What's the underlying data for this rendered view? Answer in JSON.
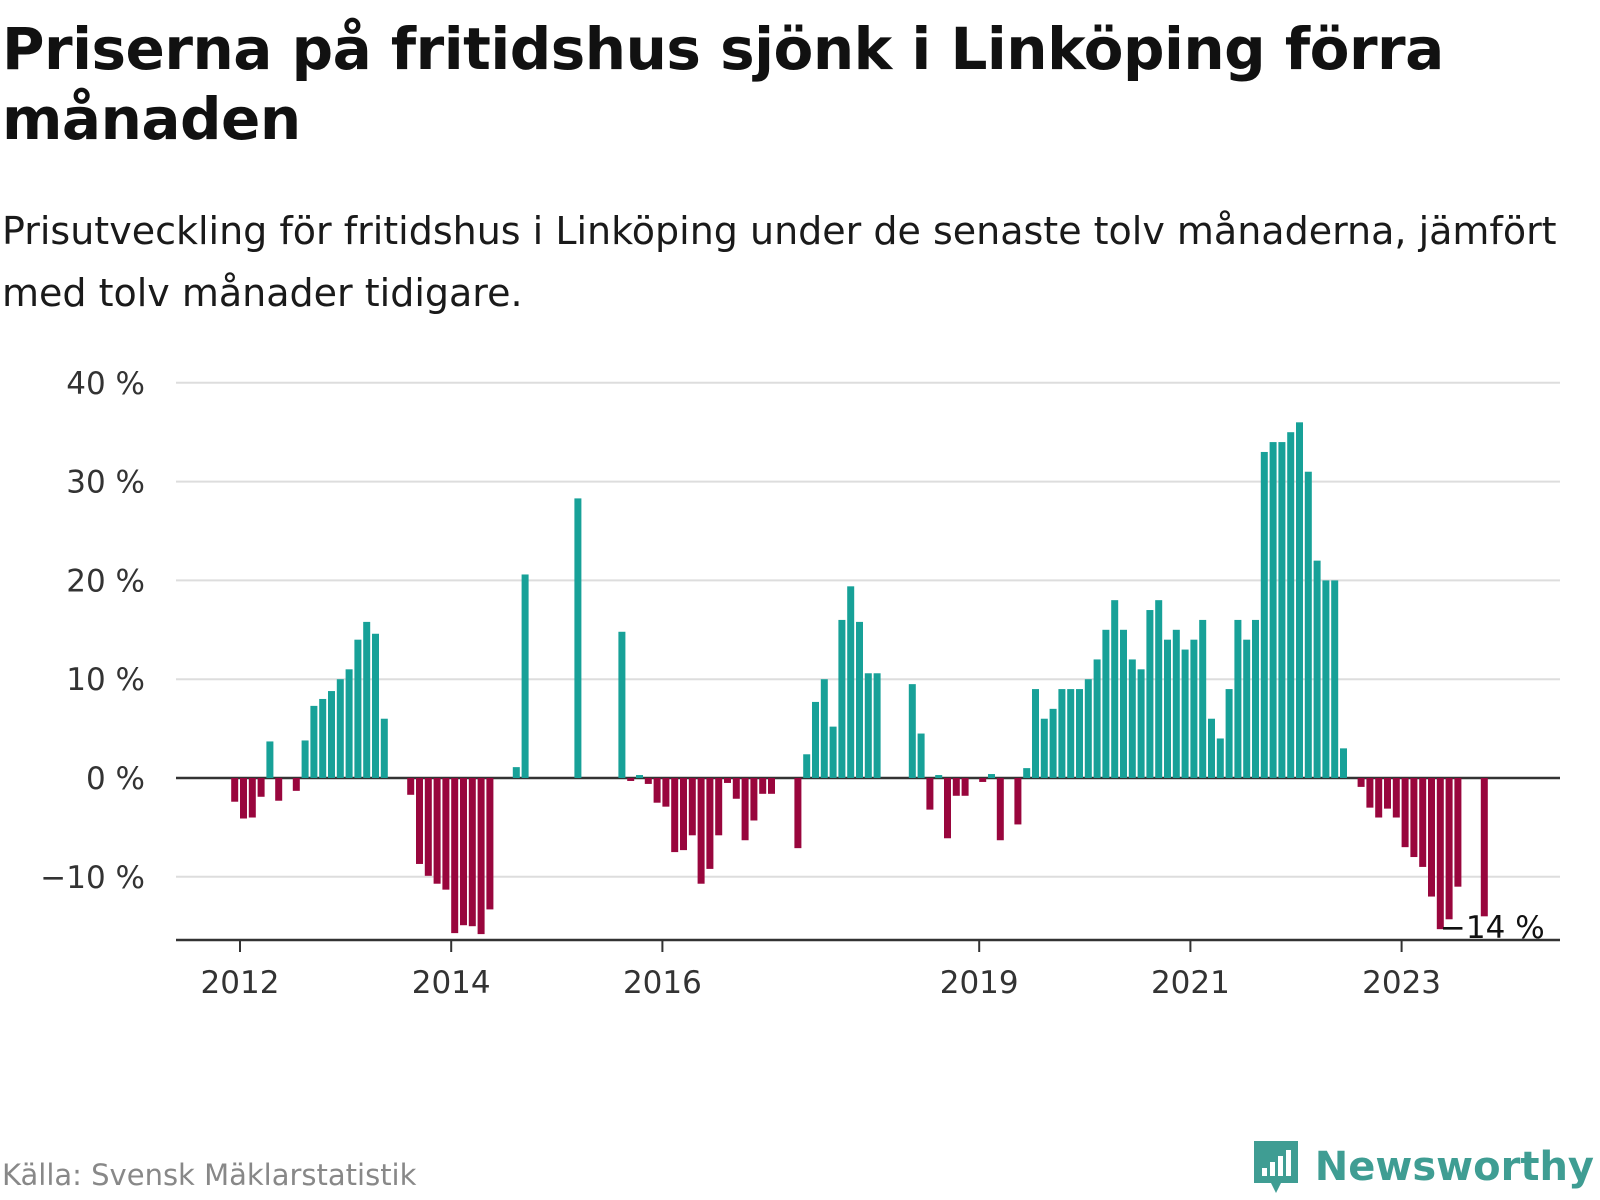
{
  "title": "Priserna på fritidshus sjönk i Linköping förra månaden",
  "subtitle": "Prisutveckling för fritidshus i Linköping under de senaste tolv månaderna, jämfört med tolv månader tidigare.",
  "source": "Källa: Svensk Mäklarstatistik",
  "brand": "Newsworthy",
  "colors": {
    "positive": "#17a198",
    "negative": "#99063d",
    "grid": "#dddddd",
    "axis": "#333333",
    "brand": "#3f9d93"
  },
  "chart_data": {
    "type": "bar",
    "ylim": [
      -18,
      40
    ],
    "yticks": [
      40,
      30,
      20,
      10,
      0,
      -10
    ],
    "ytick_labels": [
      "40 %",
      "30 %",
      "20 %",
      "10 %",
      "0 %",
      "−10 %"
    ],
    "xticks": [
      {
        "label": "2012",
        "at": "2012-01"
      },
      {
        "label": "2014",
        "at": "2014-01"
      },
      {
        "label": "2016",
        "at": "2016-01"
      },
      {
        "label": "2019",
        "at": "2019-01"
      },
      {
        "label": "2021",
        "at": "2021-01"
      },
      {
        "label": "2023",
        "at": "2023-01"
      }
    ],
    "grid": true,
    "legend": "none",
    "annotation": {
      "text": "−14 %",
      "at": "2023-10"
    },
    "series": [
      {
        "values": [
          [
            "2011-09",
            null
          ],
          [
            "2011-10",
            null
          ],
          [
            "2011-11",
            null
          ],
          [
            "2011-12",
            -2.4
          ],
          [
            "2012-01",
            -4.1
          ],
          [
            "2012-02",
            -4.0
          ],
          [
            "2012-03",
            -1.9
          ],
          [
            "2012-04",
            3.7
          ],
          [
            "2012-05",
            -2.3
          ],
          [
            "2012-06",
            null
          ],
          [
            "2012-07",
            -1.3
          ],
          [
            "2012-08",
            3.8
          ],
          [
            "2012-09",
            7.3
          ],
          [
            "2012-10",
            8.0
          ],
          [
            "2012-11",
            8.8
          ],
          [
            "2012-12",
            10.0
          ],
          [
            "2013-01",
            11.0
          ],
          [
            "2013-02",
            14.0
          ],
          [
            "2013-03",
            15.8
          ],
          [
            "2013-04",
            14.6
          ],
          [
            "2013-05",
            6.0
          ],
          [
            "2013-06",
            null
          ],
          [
            "2013-07",
            null
          ],
          [
            "2013-08",
            -1.7
          ],
          [
            "2013-09",
            -8.7
          ],
          [
            "2013-10",
            -9.9
          ],
          [
            "2013-11",
            -10.7
          ],
          [
            "2013-12",
            -11.3
          ],
          [
            "2014-01",
            -15.7
          ],
          [
            "2014-02",
            -14.9
          ],
          [
            "2014-03",
            -15.0
          ],
          [
            "2014-04",
            -15.8
          ],
          [
            "2014-05",
            -13.3
          ],
          [
            "2014-06",
            null
          ],
          [
            "2014-07",
            null
          ],
          [
            "2014-08",
            1.1
          ],
          [
            "2014-09",
            20.6
          ],
          [
            "2014-10",
            null
          ],
          [
            "2014-11",
            null
          ],
          [
            "2014-12",
            null
          ],
          [
            "2015-01",
            null
          ],
          [
            "2015-02",
            null
          ],
          [
            "2015-03",
            28.3
          ],
          [
            "2015-04",
            null
          ],
          [
            "2015-05",
            null
          ],
          [
            "2015-06",
            null
          ],
          [
            "2015-07",
            null
          ],
          [
            "2015-08",
            14.8
          ],
          [
            "2015-09",
            -0.3
          ],
          [
            "2015-10",
            0.3
          ],
          [
            "2015-11",
            -0.6
          ],
          [
            "2015-12",
            -2.5
          ],
          [
            "2016-01",
            -2.9
          ],
          [
            "2016-02",
            -7.5
          ],
          [
            "2016-03",
            -7.3
          ],
          [
            "2016-04",
            -5.8
          ],
          [
            "2016-05",
            -10.7
          ],
          [
            "2016-06",
            -9.2
          ],
          [
            "2016-07",
            -5.8
          ],
          [
            "2016-08",
            -0.5
          ],
          [
            "2016-09",
            -2.1
          ],
          [
            "2016-10",
            -6.3
          ],
          [
            "2016-11",
            -4.3
          ],
          [
            "2016-12",
            -1.6
          ],
          [
            "2017-01",
            -1.6
          ],
          [
            "2017-02",
            null
          ],
          [
            "2017-03",
            null
          ],
          [
            "2017-04",
            -7.1
          ],
          [
            "2017-05",
            2.4
          ],
          [
            "2017-06",
            7.7
          ],
          [
            "2017-07",
            10.0
          ],
          [
            "2017-08",
            5.2
          ],
          [
            "2017-09",
            16.0
          ],
          [
            "2017-10",
            19.4
          ],
          [
            "2017-11",
            15.8
          ],
          [
            "2017-12",
            10.6
          ],
          [
            "2018-01",
            10.6
          ],
          [
            "2018-02",
            null
          ],
          [
            "2018-03",
            null
          ],
          [
            "2018-04",
            null
          ],
          [
            "2018-05",
            9.5
          ],
          [
            "2018-06",
            4.5
          ],
          [
            "2018-07",
            -3.2
          ],
          [
            "2018-08",
            0.3
          ],
          [
            "2018-09",
            -6.1
          ],
          [
            "2018-10",
            -1.8
          ],
          [
            "2018-11",
            -1.8
          ],
          [
            "2018-12",
            null
          ],
          [
            "2019-01",
            -0.4
          ],
          [
            "2019-02",
            0.4
          ],
          [
            "2019-03",
            -6.3
          ],
          [
            "2019-04",
            null
          ],
          [
            "2019-05",
            -4.7
          ],
          [
            "2019-06",
            1.0
          ],
          [
            "2019-07",
            9.0
          ],
          [
            "2019-08",
            6.0
          ],
          [
            "2019-09",
            7.0
          ],
          [
            "2019-10",
            9.0
          ],
          [
            "2019-11",
            9.0
          ],
          [
            "2019-12",
            9.0
          ],
          [
            "2020-01",
            10.0
          ],
          [
            "2020-02",
            12.0
          ],
          [
            "2020-03",
            15.0
          ],
          [
            "2020-04",
            18.0
          ],
          [
            "2020-05",
            15.0
          ],
          [
            "2020-06",
            12.0
          ],
          [
            "2020-07",
            11.0
          ],
          [
            "2020-08",
            17.0
          ],
          [
            "2020-09",
            18.0
          ],
          [
            "2020-10",
            14.0
          ],
          [
            "2020-11",
            15.0
          ],
          [
            "2020-12",
            13.0
          ],
          [
            "2021-01",
            14.0
          ],
          [
            "2021-02",
            16.0
          ],
          [
            "2021-03",
            6.0
          ],
          [
            "2021-04",
            4.0
          ],
          [
            "2021-05",
            9.0
          ],
          [
            "2021-06",
            16.0
          ],
          [
            "2021-07",
            14.0
          ],
          [
            "2021-08",
            16.0
          ],
          [
            "2021-09",
            33.0
          ],
          [
            "2021-10",
            34.0
          ],
          [
            "2021-11",
            34.0
          ],
          [
            "2021-12",
            35.0
          ],
          [
            "2022-01",
            36.0
          ],
          [
            "2022-02",
            31.0
          ],
          [
            "2022-03",
            22.0
          ],
          [
            "2022-04",
            20.0
          ],
          [
            "2022-05",
            20.0
          ],
          [
            "2022-06",
            3.0
          ],
          [
            "2022-07",
            null
          ],
          [
            "2022-08",
            -0.9
          ],
          [
            "2022-09",
            -3.0
          ],
          [
            "2022-10",
            -4.0
          ],
          [
            "2022-11",
            -3.1
          ],
          [
            "2022-12",
            -4.0
          ],
          [
            "2023-01",
            -7.0
          ],
          [
            "2023-02",
            -8.0
          ],
          [
            "2023-03",
            -9.0
          ],
          [
            "2023-04",
            -12.0
          ],
          [
            "2023-05",
            -15.3
          ],
          [
            "2023-06",
            -14.3
          ],
          [
            "2023-07",
            -11.0
          ],
          [
            "2023-08",
            null
          ],
          [
            "2023-09",
            null
          ],
          [
            "2023-10",
            -14.0
          ]
        ]
      }
    ]
  }
}
